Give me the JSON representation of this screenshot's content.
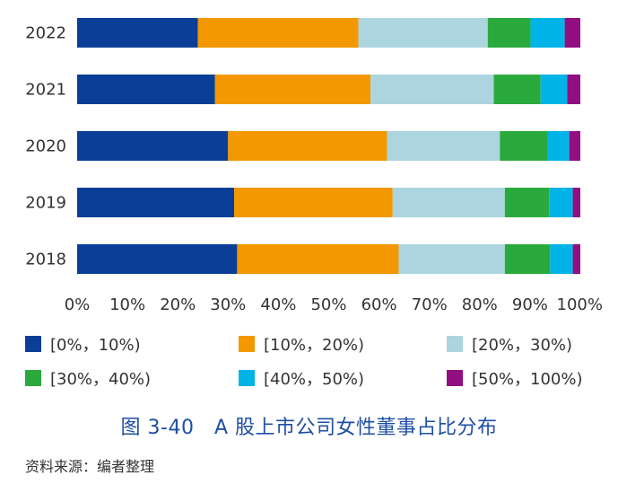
{
  "chart_data": {
    "type": "bar",
    "orientation": "horizontal",
    "stacked": true,
    "categories": [
      "2022",
      "2021",
      "2020",
      "2019",
      "2018"
    ],
    "series": [
      {
        "name": "[0%，10%)",
        "color": "#0b3f97",
        "values": [
          24.0,
          27.4,
          30.0,
          31.2,
          31.8
        ]
      },
      {
        "name": "[10%，20%)",
        "color": "#f39800",
        "values": [
          31.9,
          30.9,
          31.6,
          31.5,
          32.1
        ]
      },
      {
        "name": "[20%，30%)",
        "color": "#acd5df",
        "values": [
          25.7,
          24.5,
          22.4,
          22.3,
          21.1
        ]
      },
      {
        "name": "[30%，40%)",
        "color": "#2aaa3c",
        "values": [
          8.5,
          9.3,
          9.5,
          8.8,
          9.0
        ]
      },
      {
        "name": "[40%，50%)",
        "color": "#00b4e8",
        "values": [
          6.8,
          5.3,
          4.3,
          4.7,
          4.5
        ]
      },
      {
        "name": "[50%，100%)",
        "color": "#920e82",
        "values": [
          3.1,
          2.6,
          2.2,
          1.5,
          1.5
        ]
      }
    ],
    "x_ticks": [
      "0%",
      "10%",
      "20%",
      "30%",
      "40%",
      "50%",
      "60%",
      "70%",
      "80%",
      "90%",
      "100%"
    ],
    "xlim": [
      0,
      100
    ],
    "grid": false,
    "legend_position": "bottom"
  },
  "caption": "图 3-40　A 股上市公司女性董事占比分布",
  "source": "资料来源：编者整理"
}
